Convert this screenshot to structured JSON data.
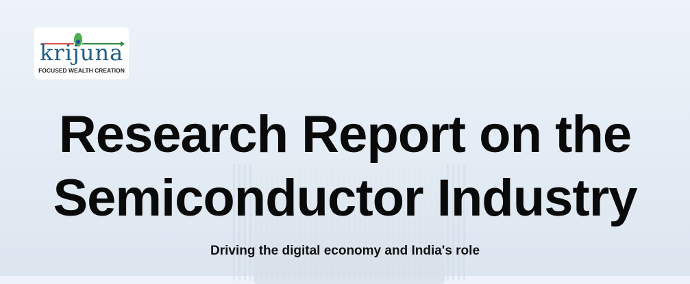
{
  "logo": {
    "wordmark": "krijuna",
    "tagline": "FOCUSED WEALTH CREATION"
  },
  "title_line1": "Research Report on the",
  "title_line2": "Semiconductor Industry",
  "subtitle": "Driving the digital economy and India's role"
}
